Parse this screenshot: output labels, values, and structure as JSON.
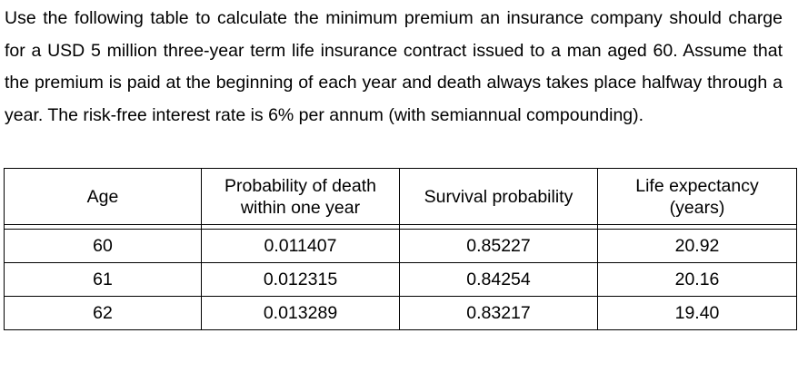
{
  "problem_text": "Use the following table to calculate the minimum premium an insurance company should charge for a USD 5 million three-year term life insurance contract issued to a man aged 60. Assume that the premium is paid at the beginning of each year and death always takes place halfway through a year. The risk-free interest rate is 6% per annum (with semiannual compounding).",
  "table": {
    "headers": [
      [
        "Age"
      ],
      [
        "Probability of death",
        "within one year"
      ],
      [
        "Survival probability"
      ],
      [
        "Life expectancy",
        "(years)"
      ]
    ],
    "rows": [
      [
        "60",
        "0.011407",
        "0.85227",
        "20.92"
      ],
      [
        "61",
        "0.012315",
        "0.84254",
        "20.16"
      ],
      [
        "62",
        "0.013289",
        "0.83217",
        "19.40"
      ]
    ]
  }
}
